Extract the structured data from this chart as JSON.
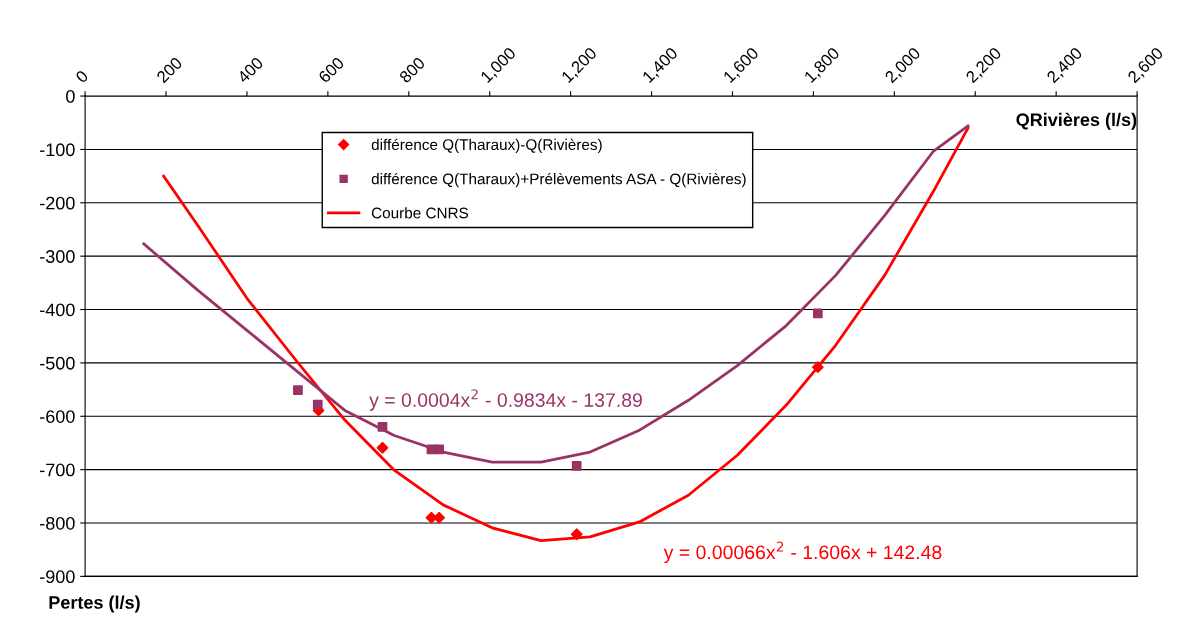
{
  "chart_data": {
    "type": "scatter",
    "xlabel": "QRivières (l/s)",
    "ylabel": "Pertes (l/s)",
    "xlim": [
      0,
      2600
    ],
    "xticks": [
      0,
      {
        "value": 200,
        "label": "200"
      },
      {
        "value": 400,
        "label": "400"
      },
      {
        "value": 600,
        "label": "600"
      },
      {
        "value": 800,
        "label": "800"
      },
      {
        "value": 1000,
        "label": "1,000"
      },
      {
        "value": 1200,
        "label": "1,200"
      },
      {
        "value": 1400,
        "label": "1,400"
      },
      {
        "value": 1600,
        "label": "1,600"
      },
      {
        "value": 1800,
        "label": "1,800"
      },
      {
        "value": 2000,
        "label": "2,000"
      },
      {
        "value": 2200,
        "label": "2,200"
      },
      {
        "value": 2400,
        "label": "2,400"
      },
      {
        "value": 2600,
        "label": "2,600"
      }
    ],
    "ylim": [
      -900,
      0
    ],
    "yticks": [
      0,
      -100,
      -200,
      -300,
      -400,
      -500,
      -600,
      -700,
      -800,
      -900
    ],
    "grid": "y",
    "legend": "top",
    "series": [
      {
        "name": "différence Q(Tharaux)-Q(Rivières)",
        "marker": "diamond",
        "color": "#ff0000",
        "x": [
          577,
          735,
          856,
          875,
          1215,
          1811
        ],
        "values": [
          -589,
          -659,
          -790,
          -790,
          -821,
          -508
        ]
      },
      {
        "name": "différence Q(Tharaux)+Prélèvements ASA - Q(Rivières)",
        "marker": "square",
        "color": "#993366",
        "x": [
          526,
          575,
          735,
          856,
          875,
          1215,
          1811
        ],
        "values": [
          -551,
          -578,
          -620,
          -662,
          -662,
          -693,
          -407
        ]
      },
      {
        "name": "Courbe CNRS",
        "type": "line",
        "marker": "none",
        "color": "#ff0000",
        "x": [
          194,
          279,
          400,
          521,
          642,
          764,
          885,
          1006,
          1127,
          1248,
          1370,
          1491,
          1612,
          1733,
          1855,
          1976,
          2097,
          2182
        ],
        "values": [
          -150,
          -243,
          -379,
          -495,
          -607,
          -701,
          -766,
          -809,
          -833,
          -826,
          -798,
          -748,
          -673,
          -579,
          -467,
          -336,
          -178,
          -60
        ]
      },
      {
        "type": "line",
        "marker": "none",
        "color": "#993366",
        "x": [
          145,
          279,
          400,
          521,
          642,
          764,
          885,
          1006,
          1127,
          1248,
          1370,
          1491,
          1612,
          1733,
          1855,
          1976,
          2097,
          2182
        ],
        "values": [
          -277,
          -364,
          -439,
          -514,
          -589,
          -636,
          -667,
          -686,
          -686,
          -667,
          -626,
          -570,
          -505,
          -430,
          -336,
          -224,
          -103,
          -56
        ]
      }
    ],
    "annotations": [
      "y = 0.0004x$^{2}$ - 0.9834x - 137.89",
      "y = 0.00066x$^{2}$ - 1.606x + 142.48"
    ]
  }
}
